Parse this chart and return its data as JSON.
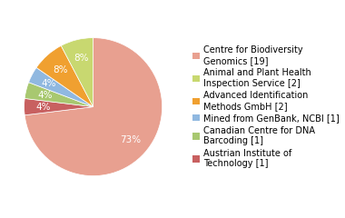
{
  "labels": [
    "Centre for Biodiversity\nGenomics [19]",
    "Animal and Plant Health\nInspection Service [2]",
    "Advanced Identification\nMethods GmbH [2]",
    "Mined from GenBank, NCBI [1]",
    "Canadian Centre for DNA\nBarcoding [1]",
    "Austrian Institute of\nTechnology [1]"
  ],
  "values": [
    19,
    2,
    2,
    1,
    1,
    1
  ],
  "colors": [
    "#e8a090",
    "#c8d870",
    "#f0a030",
    "#90b8e0",
    "#a8c870",
    "#c86060"
  ],
  "startangle": 90,
  "figsize": [
    3.8,
    2.4
  ],
  "dpi": 100,
  "legend_fontsize": 7.0,
  "autopct_fontsize": 7.5
}
